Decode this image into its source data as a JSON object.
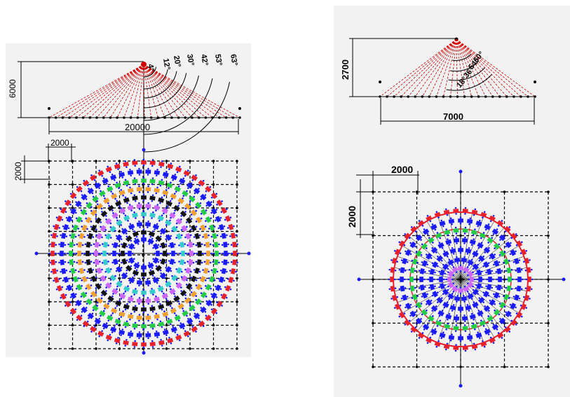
{
  "left_figure": {
    "height_dim": "6000",
    "width_dim": "20000",
    "grid_x_dim": "2000",
    "grid_y_dim": "2000",
    "angles": [
      "4°",
      "12°",
      "20°",
      "30°",
      "42°",
      "53°",
      "63°"
    ],
    "ring_colors": [
      "#e8202a",
      "#1a1aff",
      "#22cc44",
      "#f0a030",
      "#111111",
      "#cc66ff",
      "#33cccc",
      "#1a1aff",
      "#111111",
      "#1a1aff"
    ]
  },
  "right_figure": {
    "height_dim": "2700",
    "width_dim": "7000",
    "grid_x_dim": "2000",
    "grid_y_dim": "2000",
    "angles": [
      "18°",
      "36°",
      "54°",
      "60°"
    ],
    "ring_colors": [
      "#e8202a",
      "#1a1aff",
      "#22cc44",
      "#1a1aff",
      "#cc66ff"
    ]
  }
}
